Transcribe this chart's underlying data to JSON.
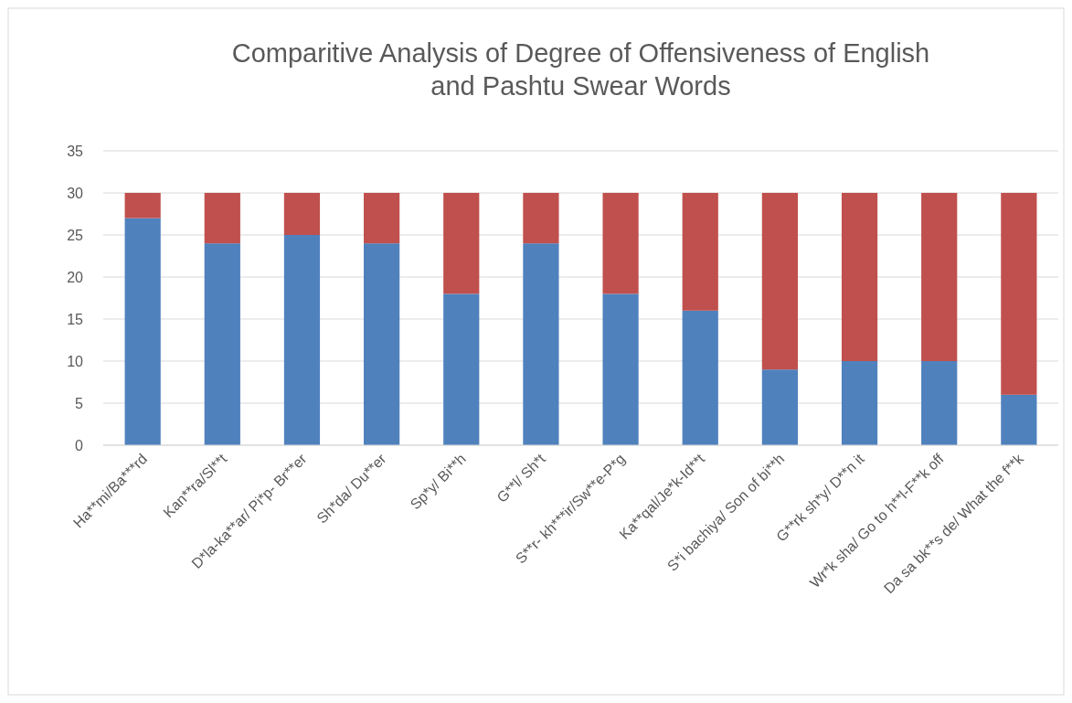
{
  "chart_data": {
    "type": "bar",
    "title": "Comparitive Analysis of Degree of Offensiveness of English and Pashtu Swear Words",
    "stacked": true,
    "grid": "y",
    "categories": [
      "Ha**mi/Ba***rd",
      "Kan**ra/Sl**t",
      "D*la-ka**ar/  Pi*p- Br**er",
      "Sh*da/ Du**er",
      "Sp*y/ Bi**h",
      "G**l/ Sh*t",
      "S**r- kh***ir/Sw**e-P*g",
      "Ka**qal/Je*k-Id**t",
      "S*i bachiya/ Son of bi**h",
      "G**rk sh*y/ D**n it",
      "Wr*k sha/  Go to h**l-F**k off",
      "Da sa bk**s de/  What the f**k"
    ],
    "series": [
      {
        "color": "#4f81bd",
        "values": [
          27,
          24,
          25,
          24,
          18,
          24,
          18,
          16,
          9,
          10,
          10,
          6
        ]
      },
      {
        "color": "#c0504d",
        "values": [
          3,
          6,
          5,
          6,
          12,
          6,
          12,
          14,
          21,
          20,
          20,
          24
        ]
      }
    ],
    "ylim": [
      0,
      35
    ],
    "yticks": [
      0,
      5,
      10,
      15,
      20,
      25,
      30,
      35
    ]
  }
}
